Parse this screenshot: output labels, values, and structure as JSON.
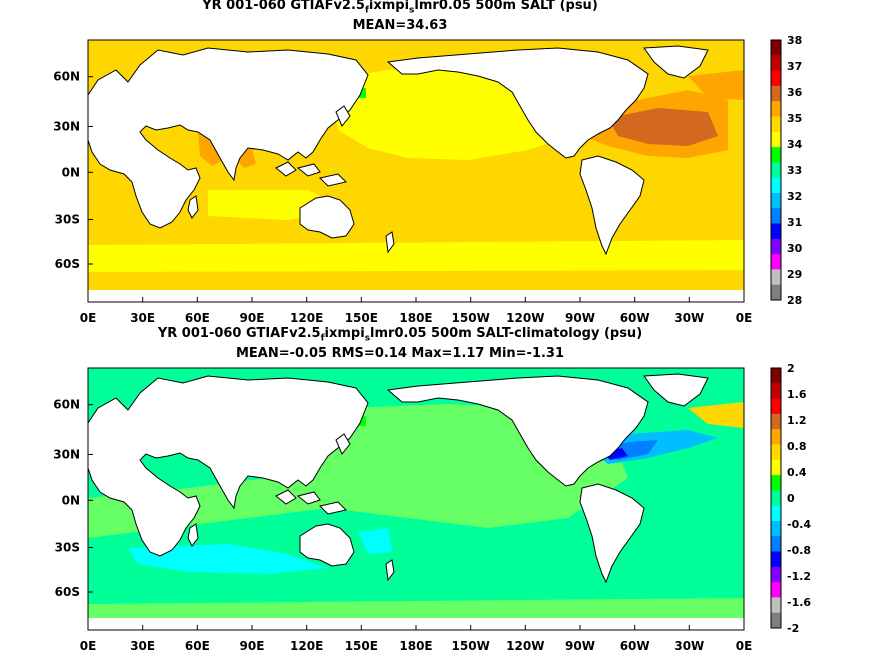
{
  "panels": [
    {
      "title_prefix": "YR 001-060 GTIAFv2.5",
      "title_sub1": "f",
      "title_mid": "ixmpi",
      "title_sub2": "s",
      "title_suffix": "lmr0.05 500m SALT (psu)",
      "stats": "MEAN=34.63",
      "colorbar_labels": [
        "38",
        "37",
        "36",
        "35",
        "34",
        "33",
        "32",
        "31",
        "30",
        "29",
        "28"
      ],
      "colorbar_colors": [
        "#800000",
        "#c00000",
        "#ff0000",
        "#d2691e",
        "#ffa500",
        "#ffd700",
        "#ffff00",
        "#00ff00",
        "#00ff99",
        "#00ffff",
        "#00bfff",
        "#0080ff",
        "#0000ff",
        "#8000ff",
        "#ff00ff",
        "#c0c0c0",
        "#808080"
      ]
    },
    {
      "title_prefix": "YR 001-060 GTIAFv2.5",
      "title_sub1": "f",
      "title_mid": "ixmpi",
      "title_sub2": "s",
      "title_suffix": "lmr0.05 500m SALT-climatology (psu)",
      "stats": "MEAN=-0.05   RMS=0.14   Max=1.17   Min=-1.31",
      "colorbar_labels": [
        "2",
        "1.6",
        "1.2",
        "0.8",
        "0.4",
        "0",
        "-0.4",
        "-0.8",
        "-1.2",
        "-1.6",
        "-2"
      ],
      "colorbar_colors": [
        "#800000",
        "#c00000",
        "#ff0000",
        "#d2691e",
        "#ffa500",
        "#ffd700",
        "#ffff00",
        "#00ff00",
        "#00ff99",
        "#00ffff",
        "#00bfff",
        "#0080ff",
        "#0000ff",
        "#8000ff",
        "#ff00ff",
        "#c0c0c0",
        "#808080"
      ]
    }
  ],
  "lat_labels": [
    "60N",
    "30N",
    "0N",
    "30S",
    "60S"
  ],
  "lon_labels": [
    "0E",
    "30E",
    "60E",
    "90E",
    "120E",
    "150E",
    "180E",
    "150W",
    "120W",
    "90W",
    "60W",
    "30W",
    "0E"
  ],
  "map_colors": {
    "land": "#ffffff",
    "coast": "#000000",
    "p1_base": "#ffd700",
    "p1_high": "#ffff00",
    "p1_orange": "#ffa500",
    "p1_brown": "#d2691e",
    "p1_darkred": "#800000",
    "p1_green": "#00ff00",
    "p2_base": "#00ff99",
    "p2_light": "#66ff66",
    "p2_cyan": "#00ffff",
    "p2_blue": "#0080ff",
    "p2_deep": "#0000ff",
    "p2_yellow": "#ffd700"
  }
}
